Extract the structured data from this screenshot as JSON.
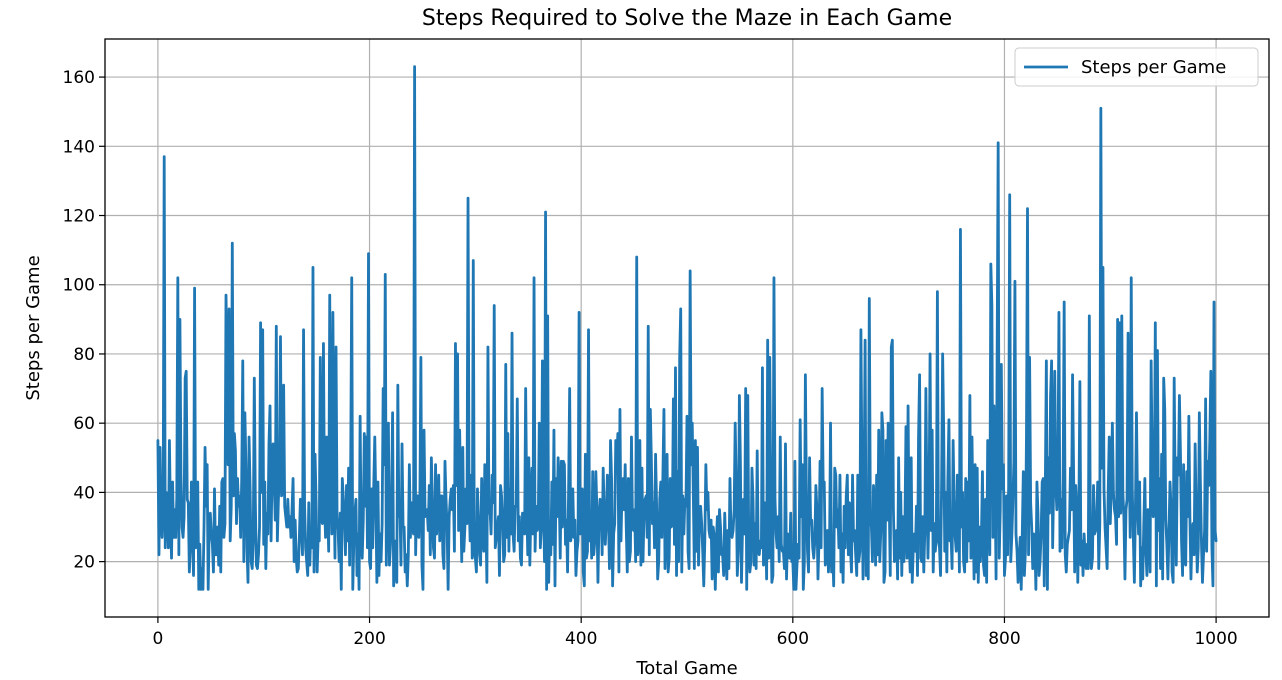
{
  "chart_data": {
    "type": "line",
    "title": "Steps Required to Solve the Maze in Each Game",
    "xlabel": "Total Game",
    "ylabel": "Steps per Game",
    "xlim": [
      -50,
      1050
    ],
    "ylim": [
      4,
      171
    ],
    "x_ticks": [
      0,
      200,
      400,
      600,
      800,
      1000
    ],
    "y_ticks": [
      20,
      40,
      60,
      80,
      100,
      120,
      140,
      160
    ],
    "grid": true,
    "legend": {
      "position": "top-right"
    },
    "series": [
      {
        "name": "Steps per Game",
        "color": "#1f77b4",
        "x_start": 0,
        "x_step": 1,
        "values": [
          55,
          22,
          53,
          33,
          27,
          35,
          137,
          24,
          40,
          37,
          24,
          55,
          32,
          21,
          43,
          27,
          35,
          27,
          38,
          102,
          22,
          90,
          45,
          30,
          27,
          33,
          73,
          75,
          38,
          37,
          17,
          25,
          43,
          28,
          16,
          99,
          24,
          33,
          43,
          12,
          25,
          12,
          18,
          12,
          30,
          53,
          36,
          48,
          12,
          30,
          34,
          28,
          25,
          17,
          41,
          22,
          22,
          30,
          19,
          36,
          17,
          43,
          44,
          27,
          31,
          97,
          78,
          48,
          93,
          26,
          36,
          112,
          39,
          57,
          52,
          31,
          44,
          36,
          39,
          27,
          44,
          78,
          20,
          63,
          48,
          24,
          14,
          56,
          41,
          20,
          18,
          26,
          73,
          37,
          19,
          18,
          22,
          30,
          89,
          40,
          87,
          25,
          43,
          18,
          34,
          28,
          54,
          65,
          26,
          47,
          54,
          43,
          32,
          88,
          26,
          38,
          45,
          85,
          39,
          40,
          71,
          36,
          33,
          30,
          38,
          30,
          33,
          27,
          35,
          44,
          20,
          32,
          21,
          17,
          18,
          27,
          38,
          30,
          22,
          87,
          36,
          24,
          20,
          16,
          37,
          19,
          30,
          24,
          105,
          17,
          51,
          37,
          17,
          28,
          26,
          79,
          32,
          31,
          83,
          37,
          27,
          56,
          36,
          23,
          97,
          43,
          28,
          92,
          45,
          21,
          82,
          33,
          29,
          20,
          34,
          12,
          44,
          38,
          32,
          22,
          42,
          26,
          47,
          19,
          48,
          102,
          12,
          26,
          34,
          38,
          16,
          28,
          12,
          62,
          27,
          21,
          32,
          57,
          36,
          56,
          24,
          109,
          20,
          18,
          41,
          24,
          42,
          56,
          37,
          14,
          43,
          16,
          28,
          20,
          31,
          70,
          48,
          103,
          19,
          38,
          60,
          19,
          25,
          38,
          63,
          13,
          20,
          26,
          14,
          71,
          33,
          36,
          19,
          54,
          30,
          30,
          17,
          22,
          13,
          22,
          48,
          27,
          37,
          31,
          28,
          163,
          22,
          38,
          39,
          27,
          36,
          79,
          19,
          12,
          58,
          33,
          34,
          35,
          29,
          42,
          22,
          50,
          37,
          24,
          21,
          48,
          28,
          34,
          45,
          26,
          39,
          39,
          22,
          18,
          49,
          38,
          30,
          12,
          33,
          38,
          41,
          35,
          42,
          23,
          83,
          42,
          80,
          29,
          58,
          38,
          20,
          53,
          23,
          30,
          41,
          31,
          125,
          38,
          26,
          45,
          21,
          107,
          23,
          21,
          17,
          41,
          32,
          22,
          19,
          44,
          29,
          23,
          48,
          34,
          14,
          82,
          34,
          35,
          28,
          45,
          37,
          94,
          24,
          27,
          30,
          33,
          16,
          42,
          39,
          32,
          20,
          22,
          77,
          27,
          57,
          23,
          41,
          28,
          86,
          28,
          23,
          36,
          36,
          67,
          26,
          33,
          21,
          19,
          34,
          30,
          28,
          70,
          38,
          22,
          50,
          19,
          35,
          47,
          28,
          102,
          23,
          36,
          29,
          31,
          60,
          24,
          30,
          78,
          38,
          20,
          121,
          12,
          91,
          14,
          31,
          22,
          43,
          25,
          58,
          13,
          44,
          33,
          50,
          40,
          21,
          49,
          30,
          49,
          48,
          25,
          32,
          17,
          41,
          70,
          26,
          29,
          41,
          27,
          32,
          16,
          23,
          26,
          92,
          28,
          38,
          41,
          17,
          13,
          51,
          21,
          23,
          87,
          26,
          34,
          21,
          46,
          22,
          26,
          46,
          35,
          14,
          32,
          38,
          37,
          22,
          47,
          34,
          25,
          32,
          45,
          33,
          18,
          55,
          44,
          13,
          28,
          31,
          55,
          50,
          57,
          17,
          64,
          26,
          41,
          44,
          35,
          48,
          30,
          17,
          44,
          20,
          23,
          56,
          30,
          29,
          35,
          20,
          108,
          22,
          26,
          55,
          19,
          47,
          20,
          34,
          38,
          39,
          27,
          88,
          22,
          64,
          49,
          31,
          37,
          24,
          51,
          36,
          15,
          20,
          38,
          43,
          27,
          45,
          64,
          18,
          30,
          51,
          17,
          21,
          44,
          30,
          31,
          67,
          25,
          76,
          16,
          46,
          20,
          79,
          93,
          17,
          39,
          28,
          38,
          36,
          62,
          23,
          18,
          104,
          48,
          60,
          40,
          18,
          55,
          23,
          53,
          19,
          34,
          36,
          31,
          23,
          13,
          26,
          48,
          35,
          40,
          29,
          27,
          32,
          15,
          30,
          27,
          12,
          26,
          33,
          17,
          35,
          30,
          22,
          22,
          16,
          34,
          24,
          15,
          29,
          18,
          44,
          28,
          27,
          29,
          35,
          60,
          43,
          16,
          23,
          68,
          48,
          14,
          30,
          38,
          28,
          70,
          12,
          68,
          22,
          17,
          20,
          47,
          38,
          19,
          31,
          18,
          52,
          23,
          22,
          26,
          24,
          76,
          19,
          37,
          30,
          15,
          84,
          21,
          79,
          37,
          14,
          16,
          102,
          38,
          28,
          24,
          33,
          20,
          56,
          25,
          23,
          23,
          18,
          54,
          15,
          28,
          22,
          21,
          34,
          20,
          20,
          12,
          49,
          12,
          19,
          25,
          21,
          61,
          33,
          48,
          12,
          20,
          74,
          38,
          23,
          17,
          50,
          31,
          32,
          24,
          21,
          26,
          42,
          35,
          15,
          26,
          49,
          24,
          70,
          42,
          43,
          19,
          23,
          29,
          17,
          23,
          60,
          17,
          24,
          13,
          47,
          45,
          30,
          35,
          24,
          45,
          17,
          28,
          14,
          36,
          24,
          39,
          45,
          22,
          37,
          24,
          17,
          45,
          26,
          29,
          22,
          16,
          45,
          20,
          23,
          87,
          46,
          15,
          40,
          84,
          16,
          28,
          15,
          96,
          33,
          30,
          20,
          42,
          34,
          19,
          45,
          22,
          58,
          20,
          29,
          63,
          58,
          14,
          17,
          55,
          32,
          60,
          38,
          16,
          82,
          84,
          35,
          20,
          23,
          29,
          15,
          50,
          21,
          40,
          16,
          33,
          20,
          30,
          59,
          21,
          65,
          27,
          17,
          50,
          14,
          24,
          28,
          23,
          36,
          16,
          56,
          74,
          21,
          20,
          33,
          17,
          29,
          70,
          39,
          21,
          36,
          80,
          29,
          58,
          17,
          31,
          23,
          28,
          98,
          26,
          24,
          16,
          42,
          80,
          58,
          23,
          40,
          17,
          44,
          61,
          26,
          28,
          18,
          55,
          36,
          27,
          23,
          45,
          40,
          17,
          116,
          30,
          40,
          20,
          17,
          44,
          20,
          43,
          26,
          68,
          21,
          56,
          34,
          15,
          48,
          17,
          47,
          14,
          30,
          20,
          27,
          46,
          19,
          16,
          38,
          14,
          55,
          43,
          22,
          106,
          94,
          27,
          65,
          44,
          15,
          79,
          141,
          21,
          35,
          77,
          41,
          48,
          16,
          21,
          39,
          22,
          42,
          126,
          20,
          27,
          37,
          49,
          101,
          28,
          23,
          14,
          20,
          27,
          12,
          28,
          46,
          16,
          23,
          56,
          122,
          22,
          79,
          37,
          30,
          18,
          28,
          26,
          12,
          43,
          34,
          16,
          20,
          28,
          43,
          44,
          13,
          42,
          78,
          12,
          50,
          34,
          68,
          78,
          24,
          43,
          75,
          42,
          35,
          44,
          92,
          23,
          38,
          24,
          44,
          95,
          22,
          17,
          25,
          27,
          29,
          47,
          35,
          74,
          46,
          17,
          42,
          35,
          14,
          33,
          72,
          19,
          26,
          16,
          28,
          22,
          18,
          25,
          18,
          91,
          25,
          18,
          21,
          42,
          28,
          29,
          32,
          43,
          18,
          31,
          151,
          47,
          105,
          41,
          30,
          24,
          18,
          40,
          56,
          31,
          42,
          60,
          40,
          35,
          33,
          25,
          90,
          33,
          89,
          34,
          91,
          40,
          33,
          15,
          35,
          38,
          86,
          51,
          27,
          102,
          41,
          27,
          14,
          35,
          63,
          37,
          28,
          43,
          13,
          24,
          15,
          31,
          44,
          23,
          16,
          35,
          33,
          17,
          78,
          48,
          33,
          40,
          89,
          13,
          81,
          29,
          44,
          18,
          51,
          15,
          73,
          64,
          32,
          25,
          15,
          28,
          43,
          36,
          17,
          14,
          73,
          39,
          19,
          50,
          45,
          68,
          51,
          26,
          16,
          48,
          20,
          19,
          46,
          33,
          62,
          33,
          15,
          28,
          31,
          22,
          54,
          34,
          17,
          24,
          63,
          43,
          26,
          14,
          22,
          29,
          67,
          23,
          49,
          42,
          55,
          75,
          24,
          13,
          95,
          29,
          26
        ]
      }
    ]
  }
}
